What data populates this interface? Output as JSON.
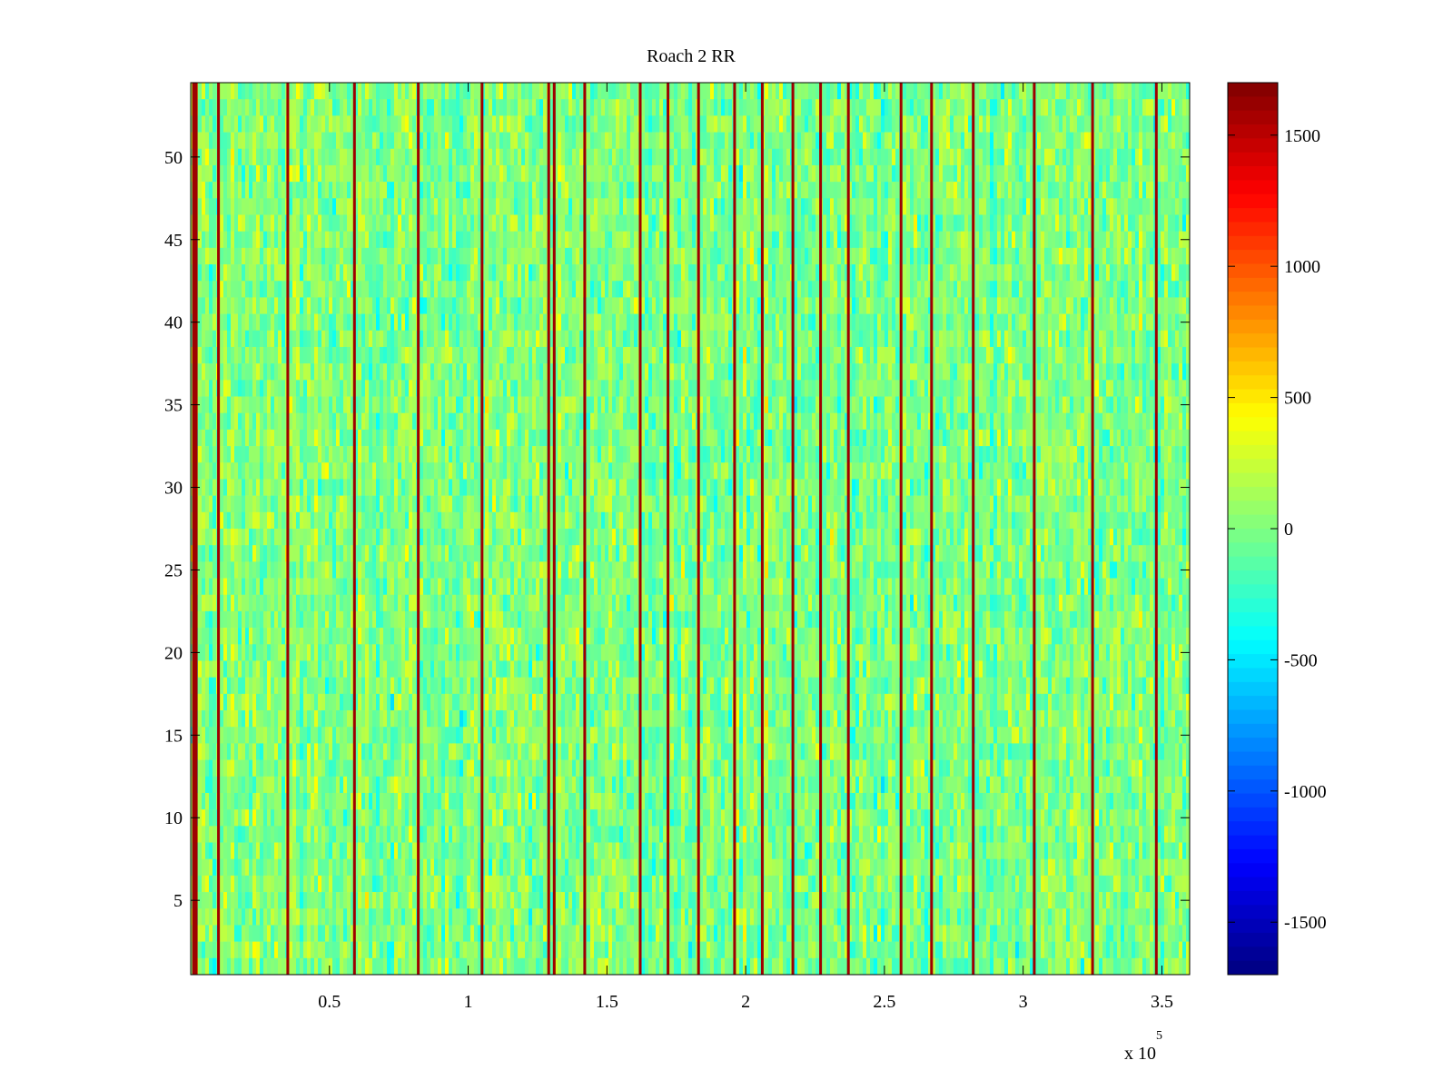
{
  "chart_data": {
    "type": "heatmap",
    "title": "Roach 2 RR",
    "xlabel": "",
    "ylabel": "",
    "x_exponent_label": "x 10",
    "x_exponent_power": "5",
    "xlim": [
      0,
      3.6
    ],
    "ylim": [
      0.5,
      54.5
    ],
    "x_ticks": [
      0.5,
      1,
      1.5,
      2,
      2.5,
      3,
      3.5
    ],
    "x_tick_labels": [
      "0.5",
      "1",
      "1.5",
      "2",
      "2.5",
      "3",
      "3.5"
    ],
    "y_ticks": [
      5,
      10,
      15,
      20,
      25,
      30,
      35,
      40,
      45,
      50
    ],
    "y_tick_labels": [
      "5",
      "10",
      "15",
      "20",
      "25",
      "30",
      "35",
      "40",
      "45",
      "50"
    ],
    "rows": 54,
    "background_mean": 0,
    "background_spread": 220,
    "spike_columns_x": [
      0.015,
      0.1,
      0.35,
      0.59,
      0.82,
      1.05,
      1.29,
      1.31,
      1.42,
      1.62,
      1.72,
      1.83,
      1.96,
      2.06,
      2.17,
      2.27,
      2.37,
      2.56,
      2.67,
      2.82,
      3.04,
      3.25,
      3.48
    ],
    "spike_value": 1600,
    "colorbar": {
      "colormap": "jet",
      "range": [
        -1700,
        1700
      ],
      "ticks": [
        1500,
        1000,
        500,
        0,
        -500,
        -1000,
        -1500
      ],
      "tick_labels": [
        "1500",
        "1000",
        "500",
        "0",
        "-500",
        "-1000",
        "-1500"
      ]
    }
  }
}
